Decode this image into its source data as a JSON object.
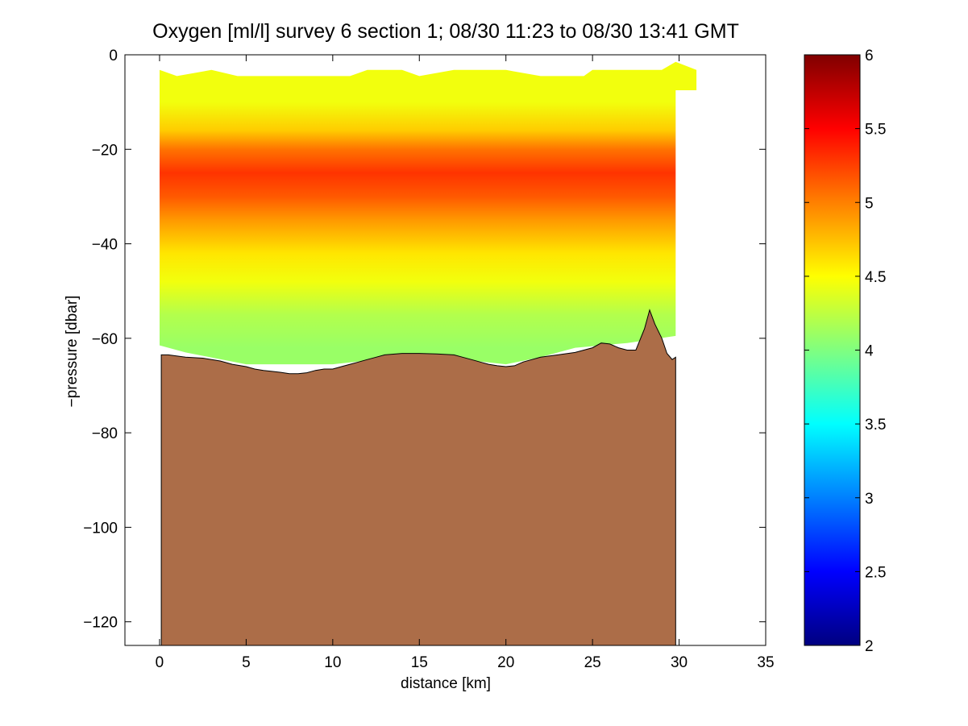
{
  "chart_data": {
    "type": "heatmap",
    "title": "Oxygen [ml/l] survey 6 section 1; 08/30 11:23 to 08/30 13:41 GMT",
    "xlabel": "distance [km]",
    "ylabel": "−pressure [dbar]",
    "xlim": [
      -2,
      35
    ],
    "ylim": [
      -125,
      0
    ],
    "xticks": [
      0,
      5,
      10,
      15,
      20,
      25,
      30,
      35
    ],
    "xtick_labels": [
      "0",
      "5",
      "10",
      "15",
      "20",
      "25",
      "30",
      "35"
    ],
    "yticks": [
      0,
      -20,
      -40,
      -60,
      -80,
      -100,
      -120
    ],
    "ytick_labels": [
      "0",
      "−20",
      "−40",
      "−60",
      "−80",
      "−100",
      "−120"
    ],
    "colorbar": {
      "colormap": "jet",
      "range": [
        2,
        6
      ],
      "ticks": [
        2,
        2.5,
        3,
        3.5,
        4,
        4.5,
        5,
        5.5,
        6
      ],
      "tick_labels": [
        "2",
        "2.5",
        "3",
        "3.5",
        "4",
        "4.5",
        "5",
        "5.5",
        "6"
      ]
    },
    "data_region": {
      "x_range": [
        0,
        29.8
      ],
      "top_depth": [
        [
          0,
          -3.2
        ],
        [
          1,
          -4.5
        ],
        [
          3,
          -3.2
        ],
        [
          4.5,
          -4.5
        ],
        [
          11,
          -4.5
        ],
        [
          12,
          -3.2
        ],
        [
          14,
          -3.2
        ],
        [
          15,
          -4.5
        ],
        [
          17,
          -3.2
        ],
        [
          20,
          -3.2
        ],
        [
          22,
          -4.5
        ],
        [
          24.5,
          -4.5
        ],
        [
          25,
          -3.2
        ],
        [
          29,
          -3.2
        ],
        [
          29.8,
          -1.5
        ],
        [
          31,
          -3.2
        ],
        [
          31,
          -7.5
        ],
        [
          29.8,
          -7.5
        ]
      ],
      "bottom_depth": [
        [
          0,
          -61.5
        ],
        [
          1.5,
          -63
        ],
        [
          5,
          -65.5
        ],
        [
          10,
          -65.5
        ],
        [
          15,
          -63.5
        ],
        [
          20,
          -65.5
        ],
        [
          22,
          -64
        ],
        [
          24,
          -62
        ],
        [
          27,
          -61
        ],
        [
          29.8,
          -59.5
        ]
      ]
    },
    "oxygen_profile": {
      "depths": [
        -3,
        -10,
        -16,
        -20,
        -25,
        -30,
        -35,
        -42,
        -48,
        -55,
        -62
      ],
      "values": [
        4.45,
        4.45,
        4.7,
        5.05,
        5.3,
        5.15,
        4.9,
        4.6,
        4.45,
        4.2,
        4.1
      ]
    },
    "bathymetry": {
      "x": [
        0.1,
        0.5,
        1.5,
        2.5,
        3.5,
        4.2,
        5,
        5.5,
        6,
        6.5,
        7,
        7.5,
        8,
        8.5,
        9,
        9.5,
        10,
        10.5,
        11,
        11.5,
        12,
        12.5,
        13,
        14,
        15,
        16,
        17,
        17.5,
        18,
        18.5,
        19,
        19.5,
        20,
        20.5,
        21,
        22,
        23,
        24,
        25,
        25.5,
        26,
        26.5,
        27,
        27.5,
        28,
        28.3,
        28.6,
        29,
        29.3,
        29.6,
        29.8
      ],
      "depth": [
        -63.5,
        -63.5,
        -64,
        -64.2,
        -64.8,
        -65.5,
        -66,
        -66.5,
        -66.8,
        -67,
        -67.2,
        -67.5,
        -67.5,
        -67.3,
        -66.8,
        -66.5,
        -66.5,
        -66,
        -65.5,
        -65,
        -64.5,
        -64,
        -63.5,
        -63.2,
        -63.2,
        -63.3,
        -63.5,
        -64,
        -64.5,
        -65,
        -65.5,
        -65.8,
        -66,
        -65.8,
        -65,
        -64,
        -63.5,
        -63,
        -62,
        -61,
        -61.2,
        -62,
        -62.5,
        -62.5,
        -58,
        -54,
        -57,
        -60,
        -63.2,
        -64.5,
        -64
      ]
    }
  }
}
